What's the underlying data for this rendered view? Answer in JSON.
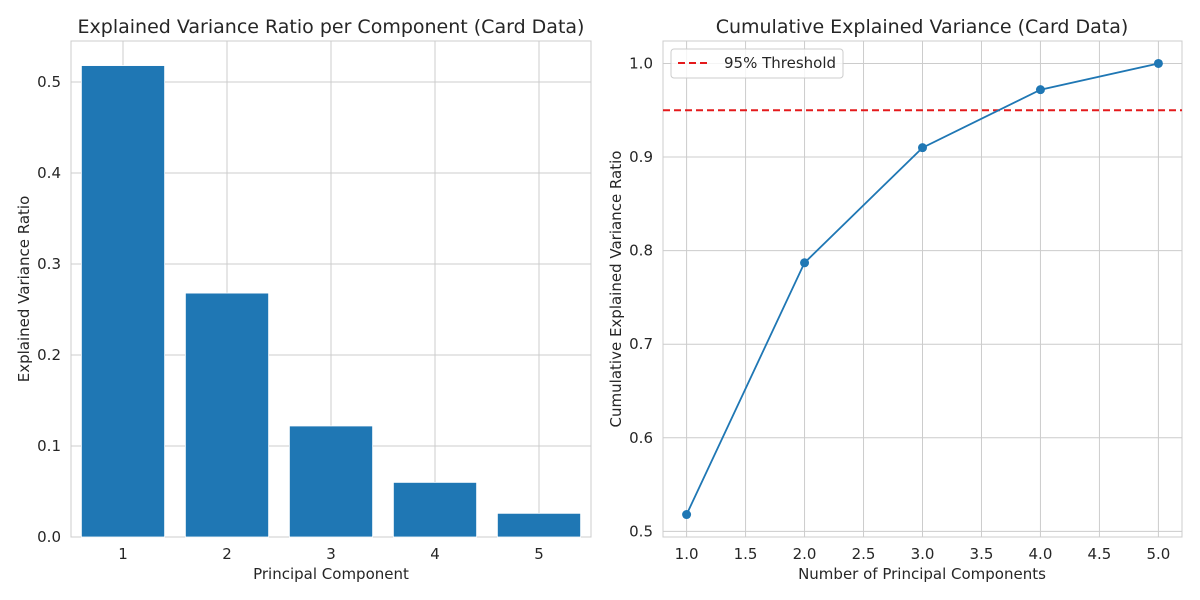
{
  "colors": {
    "bar": "#1f77b4",
    "line": "#1f77b4",
    "threshold": "#e41a1c",
    "grid": "#cccccc",
    "text": "#262626"
  },
  "chart_data": [
    {
      "type": "bar",
      "title": "Explained Variance Ratio per Component (Card Data)",
      "xlabel": "Principal Component",
      "ylabel": "Explained Variance Ratio",
      "categories": [
        "1",
        "2",
        "3",
        "4",
        "5"
      ],
      "values": [
        0.518,
        0.268,
        0.122,
        0.06,
        0.026
      ],
      "ylim": [
        0,
        0.545
      ],
      "yticks": [
        0.0,
        0.1,
        0.2,
        0.3,
        0.4,
        0.5
      ],
      "grid": true
    },
    {
      "type": "line",
      "title": "Cumulative Explained Variance (Card Data)",
      "xlabel": "Number of Principal Components",
      "ylabel": "Cumulative Explained Variance Ratio",
      "x": [
        1.0,
        2.0,
        3.0,
        4.0,
        5.0
      ],
      "y": [
        0.518,
        0.787,
        0.91,
        0.972,
        1.0
      ],
      "xlim": [
        0.8,
        5.2
      ],
      "ylim": [
        0.494,
        1.024
      ],
      "xticks": [
        1.0,
        1.5,
        2.0,
        2.5,
        3.0,
        3.5,
        4.0,
        4.5,
        5.0
      ],
      "yticks": [
        0.5,
        0.6,
        0.7,
        0.8,
        0.9,
        1.0
      ],
      "threshold": {
        "value": 0.95,
        "label": "95% Threshold",
        "style": "dashed"
      },
      "legend": {
        "position": "top-left",
        "entries": [
          "95% Threshold"
        ]
      },
      "markers": true,
      "grid": true
    }
  ]
}
